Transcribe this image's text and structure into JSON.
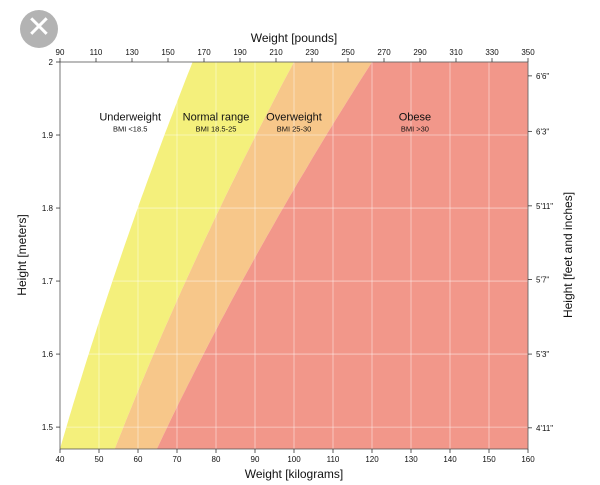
{
  "close_button": {
    "icon": "close-icon",
    "glyph": "✕"
  },
  "chart_data": {
    "type": "area",
    "x_bottom_label": "Weight [kilograms]",
    "x_top_label": "Weight [pounds]",
    "y_left_label": "Height [meters]",
    "y_right_label": "Height [feet and inches]",
    "xlim": [
      40,
      160
    ],
    "ylim": [
      1.47,
      2.0
    ],
    "x_ticks": [
      40,
      50,
      60,
      70,
      80,
      90,
      100,
      110,
      120,
      130,
      140,
      150,
      160
    ],
    "x_top_ticks": [
      90,
      110,
      130,
      150,
      170,
      190,
      210,
      230,
      250,
      270,
      290,
      310,
      330,
      350
    ],
    "y_ticks": [
      1.5,
      1.6,
      1.7,
      1.8,
      1.9,
      2
    ],
    "y_right_ticks": [
      {
        "label": "4'11\"",
        "meters": 1.499
      },
      {
        "label": "5'3\"",
        "meters": 1.6
      },
      {
        "label": "5'7\"",
        "meters": 1.702
      },
      {
        "label": "5'11\"",
        "meters": 1.803
      },
      {
        "label": "6'3\"",
        "meters": 1.905
      },
      {
        "label": "6'6\"",
        "meters": 1.981
      }
    ],
    "zones": [
      {
        "name": "Underweight",
        "range": "BMI <18.5",
        "bmi_min": 0,
        "bmi_max": 18.5,
        "color": "#ffffff",
        "label_at": [
          58,
          1.92
        ]
      },
      {
        "name": "Normal range",
        "range": "BMI 18.5-25",
        "bmi_min": 18.5,
        "bmi_max": 25,
        "color": "#f4f07c",
        "label_at": [
          80,
          1.92
        ]
      },
      {
        "name": "Overweight",
        "range": "BMI 25-30",
        "bmi_min": 25,
        "bmi_max": 30,
        "color": "#f7c78a",
        "label_at": [
          100,
          1.92
        ]
      },
      {
        "name": "Obese",
        "range": "BMI >30",
        "bmi_min": 30,
        "bmi_max": 1000,
        "color": "#f2978a",
        "label_at": [
          131,
          1.92
        ]
      }
    ],
    "grid": true
  }
}
